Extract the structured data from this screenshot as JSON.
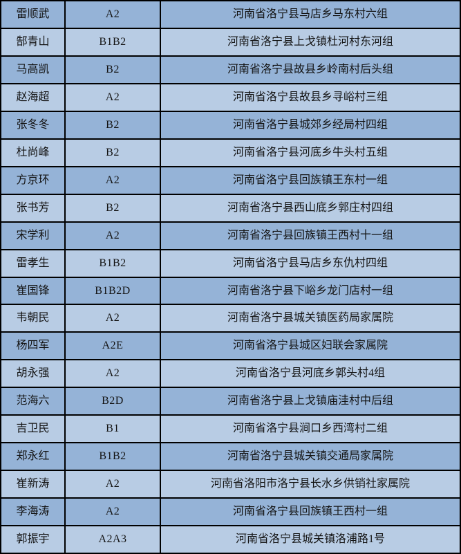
{
  "colors": {
    "row_dark_bg": "#95b3d7",
    "row_light_bg": "#b8cce4",
    "grid_line": "#000000",
    "text": "#141414"
  },
  "table": {
    "rows": [
      {
        "name": "雷顺武",
        "license": "A2",
        "address": "河南省洛宁县马店乡马东村六组"
      },
      {
        "name": "郜青山",
        "license": "B1B2",
        "address": "河南省洛宁县上戈镇杜河村东河组"
      },
      {
        "name": "马高凯",
        "license": "B2",
        "address": "河南省洛宁县故县乡岭南村后头组"
      },
      {
        "name": "赵海超",
        "license": "A2",
        "address": "河南省洛宁县故县乡寻峪村三组"
      },
      {
        "name": "张冬冬",
        "license": "B2",
        "address": "河南省洛宁县城郊乡经局村四组"
      },
      {
        "name": "杜尚峰",
        "license": "B2",
        "address": "河南省洛宁县河底乡牛头村五组"
      },
      {
        "name": "方京环",
        "license": "A2",
        "address": "河南省洛宁县回族镇王东村一组"
      },
      {
        "name": "张书芳",
        "license": "B2",
        "address": "河南省洛宁县西山底乡郭庄村四组"
      },
      {
        "name": "宋学利",
        "license": "A2",
        "address": "河南省洛宁县回族镇王西村十一组"
      },
      {
        "name": "雷孝生",
        "license": "B1B2",
        "address": "河南省洛宁县马店乡东仇村四组"
      },
      {
        "name": "崔国锋",
        "license": "B1B2D",
        "address": "河南省洛宁县下峪乡龙门店村一组"
      },
      {
        "name": "韦朝民",
        "license": "A2",
        "address": "河南省洛宁县城关镇医药局家属院"
      },
      {
        "name": "杨四军",
        "license": "A2E",
        "address": "河南省洛宁县城区妇联会家属院"
      },
      {
        "name": "胡永强",
        "license": "A2",
        "address": "河南省洛宁县河底乡郭头村4组"
      },
      {
        "name": "范海六",
        "license": "B2D",
        "address": "河南省洛宁县上戈镇庙洼村中后组"
      },
      {
        "name": "吉卫民",
        "license": "B1",
        "address": "河南省洛宁县涧口乡西湾村二组"
      },
      {
        "name": "郑永红",
        "license": "B1B2",
        "address": "河南省洛宁县城关镇交通局家属院"
      },
      {
        "name": "崔新涛",
        "license": "A2",
        "address": "河南省洛阳市洛宁县长水乡供销社家属院"
      },
      {
        "name": "李海涛",
        "license": "A2",
        "address": "河南省洛宁县回族镇王西村一组"
      },
      {
        "name": "郭振宇",
        "license": "A2A3",
        "address": "河南省洛宁县城关镇洛浦路1号"
      }
    ]
  }
}
